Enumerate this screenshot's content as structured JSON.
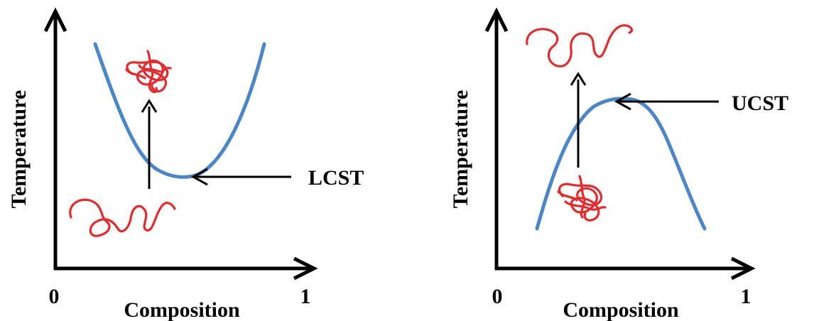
{
  "colors": {
    "curve": "#4a86c8",
    "chain": "#e8292b",
    "ink": "#000000"
  },
  "panels": [
    {
      "id": "lcst",
      "ylabel": "Temperature",
      "xlabel": "Composition",
      "x_start": "0",
      "x_end": "1",
      "annotation": "LCST"
    },
    {
      "id": "ucst",
      "ylabel": "Temperature",
      "xlabel": "Composition",
      "x_start": "0",
      "x_end": "1",
      "annotation": "UCST"
    }
  ]
}
